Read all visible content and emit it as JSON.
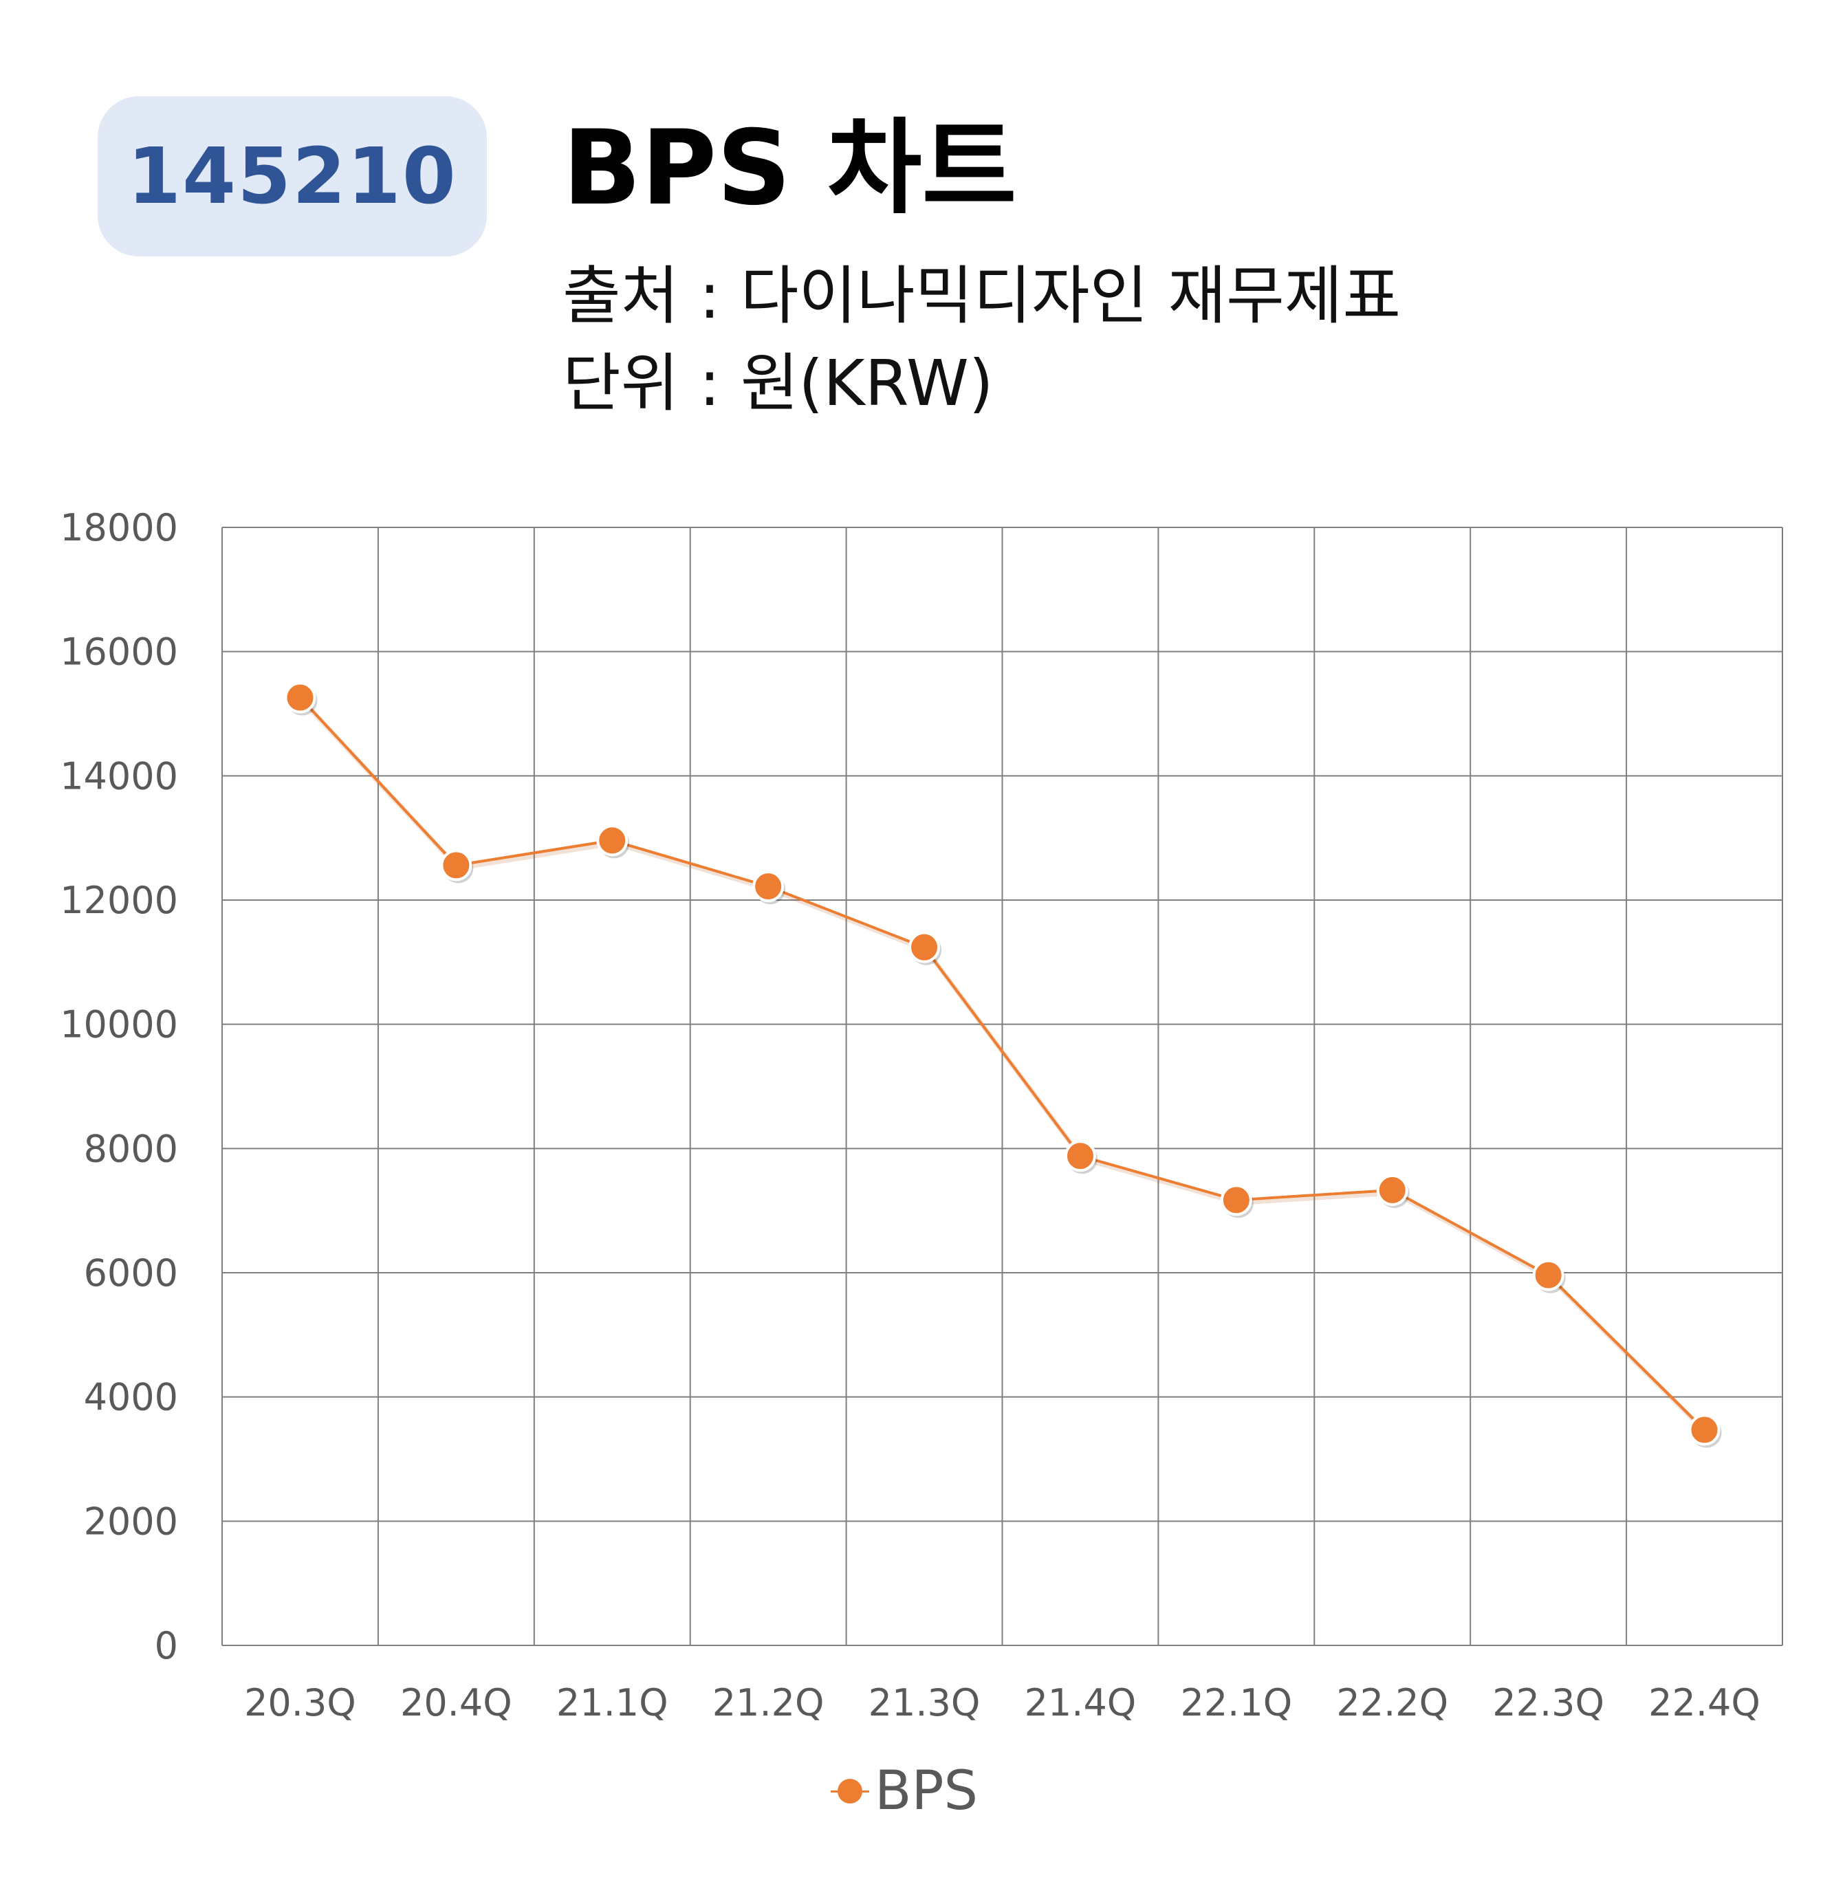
{
  "header": {
    "code": "145210",
    "title": "BPS 차트",
    "source": "출처 : 다이나믹디자인 재무제표",
    "unit": "단위 : 원(KRW)"
  },
  "colors": {
    "series": "#ed7d31",
    "badge_bg": "#e1e8f6",
    "badge_text": "#2f5597",
    "grid": "#7f7f7f"
  },
  "chart_data": {
    "type": "line",
    "categories": [
      "20.3Q",
      "20.4Q",
      "21.1Q",
      "21.2Q",
      "21.3Q",
      "21.4Q",
      "22.1Q",
      "22.2Q",
      "22.3Q",
      "22.4Q"
    ],
    "series": [
      {
        "name": "BPS",
        "values": [
          15260,
          12560,
          12960,
          12220,
          11240,
          7880,
          7170,
          7330,
          5960,
          3470
        ]
      }
    ],
    "ylim": [
      0,
      18000
    ],
    "yticks": [
      "0",
      "2000",
      "4000",
      "6000",
      "8000",
      "10000",
      "12000",
      "14000",
      "16000",
      "18000"
    ],
    "grid": true,
    "legend": "bottom",
    "markers": true
  }
}
